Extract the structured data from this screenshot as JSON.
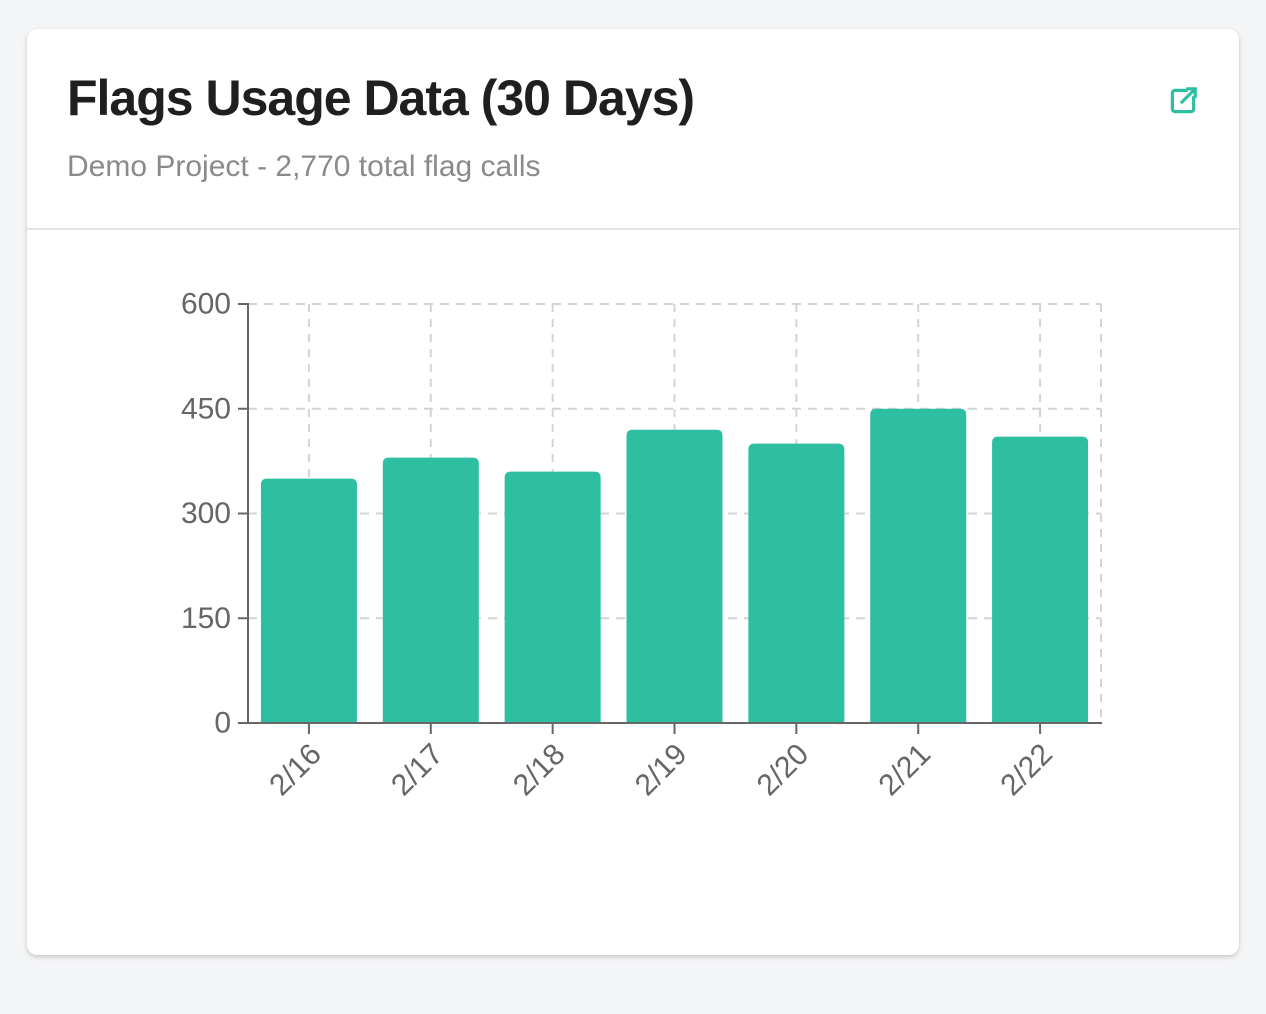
{
  "window": {
    "background_color": "#f4f5f6"
  },
  "card": {
    "title": "Flags Usage Data (30 Days)",
    "subtitle": "Demo Project - 2,770 total flag calls",
    "accent_color": "#2ebea1",
    "action_icon": "external-link-icon"
  },
  "chart_data": {
    "type": "bar",
    "title": "Flags Usage Data (30 Days)",
    "subtitle": "Demo Project - 2,770 total flag calls",
    "categories": [
      "2/16",
      "2/17",
      "2/18",
      "2/19",
      "2/20",
      "2/21",
      "2/22"
    ],
    "values": [
      350,
      380,
      360,
      420,
      400,
      450,
      410
    ],
    "total_flag_calls": 2770,
    "xlabel": "",
    "ylabel": "",
    "ylim": [
      0,
      600
    ],
    "yticks": [
      0,
      150,
      300,
      450,
      600
    ],
    "grid": "dashed",
    "legend": "none",
    "bar_color": "#2ebea1",
    "axis_color": "#666666",
    "gridline_color": "#d4d4d4",
    "tick_label_color": "#666666"
  }
}
